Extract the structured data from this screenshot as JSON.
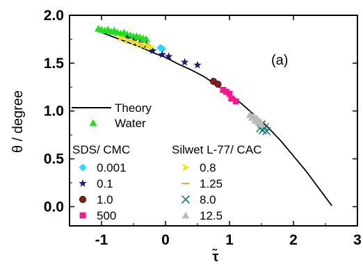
{
  "chart_data": {
    "type": "scatter",
    "panel_label": "(a)",
    "xlabel": "τ̃",
    "ylabel": "θ / degree",
    "xlim": [
      -1.5,
      3
    ],
    "ylim": [
      -0.2,
      2.0
    ],
    "xticks": [
      -1,
      0,
      1,
      2,
      3
    ],
    "yticks": [
      0.0,
      0.5,
      1.0,
      1.5,
      2.0
    ],
    "xtick_labels": [
      "-1",
      "0",
      "1",
      "2",
      "3"
    ],
    "ytick_labels": [
      "0.0",
      "0.5",
      "1.0",
      "1.5",
      "2.0"
    ],
    "grid": false,
    "legend_placement": "left",
    "legend_headers": {
      "sds": "SDS/ CMC",
      "silwet": "Silwet L-77/ CAC"
    },
    "theory": {
      "name": "Theory",
      "color": "#000000",
      "x": [
        -1.0,
        -0.8,
        -0.6,
        -0.4,
        -0.2,
        0.0,
        0.2,
        0.4,
        0.6,
        0.8,
        1.0,
        1.2,
        1.4,
        1.6,
        1.8,
        2.0,
        2.2,
        2.4,
        2.6
      ],
      "y": [
        1.82,
        1.77,
        1.72,
        1.67,
        1.61,
        1.56,
        1.49,
        1.43,
        1.36,
        1.27,
        1.18,
        1.07,
        0.95,
        0.83,
        0.69,
        0.53,
        0.37,
        0.19,
        0.01
      ]
    },
    "series": [
      {
        "name": "Water",
        "group": "water",
        "marker": "triangle",
        "color": "#22dd22",
        "x": [
          -1.05,
          -1.0,
          -0.95,
          -0.9,
          -0.85,
          -0.8,
          -0.75,
          -0.7,
          -0.65,
          -0.6,
          -0.55,
          -0.5,
          -0.45,
          -0.4,
          -0.35,
          -0.3
        ],
        "y": [
          1.86,
          1.85,
          1.84,
          1.85,
          1.83,
          1.84,
          1.82,
          1.81,
          1.82,
          1.8,
          1.79,
          1.78,
          1.78,
          1.77,
          1.76,
          1.75
        ]
      },
      {
        "name": "0.001",
        "group": "sds",
        "marker": "diamond",
        "color": "#22ddff",
        "x": [
          -0.08,
          -0.05
        ],
        "y": [
          1.66,
          1.65
        ]
      },
      {
        "name": "0.1",
        "group": "sds",
        "marker": "star",
        "color": "#1a1a7a",
        "x": [
          -0.6,
          -0.5,
          -0.4,
          -0.3,
          -0.2,
          -0.05,
          0.05,
          0.3,
          0.5
        ],
        "y": [
          1.76,
          1.73,
          1.71,
          1.69,
          1.63,
          1.59,
          1.57,
          1.51,
          1.48
        ]
      },
      {
        "name": "1.0",
        "group": "sds",
        "marker": "sphere",
        "color": "#8b1a1a",
        "x": [
          0.75,
          0.82
        ],
        "y": [
          1.31,
          1.28
        ]
      },
      {
        "name": "500",
        "group": "sds",
        "marker": "square",
        "color": "#ff1493",
        "x": [
          0.9,
          0.95,
          1.0,
          1.03,
          1.1
        ],
        "y": [
          1.22,
          1.2,
          1.18,
          1.13,
          1.1
        ]
      },
      {
        "name": "0.8",
        "group": "silwet",
        "marker": "arrow",
        "color": "#f2e600",
        "x": [
          -0.7,
          -0.6,
          -0.5,
          -0.42,
          -0.35,
          -0.28,
          -0.22
        ],
        "y": [
          1.76,
          1.74,
          1.72,
          1.7,
          1.69,
          1.68,
          1.67
        ]
      },
      {
        "name": "1.25",
        "group": "silwet",
        "marker": "dash",
        "color": "#ffa040",
        "x": [
          1.45,
          1.5
        ],
        "y": [
          0.9,
          0.88
        ]
      },
      {
        "name": "8.0",
        "group": "silwet",
        "marker": "cross",
        "color": "#1a7a7a",
        "x": [
          1.48,
          1.52,
          1.55,
          1.58,
          1.5
        ],
        "y": [
          0.82,
          0.8,
          0.83,
          0.79,
          0.86
        ]
      },
      {
        "name": "12.5",
        "group": "silwet",
        "marker": "triangle",
        "color": "#bbbbbb",
        "x": [
          1.32,
          1.35,
          1.38,
          1.4,
          1.43,
          1.45,
          1.48,
          1.5
        ],
        "y": [
          0.96,
          0.93,
          0.95,
          0.9,
          0.92,
          0.88,
          0.89,
          0.86
        ]
      }
    ]
  }
}
